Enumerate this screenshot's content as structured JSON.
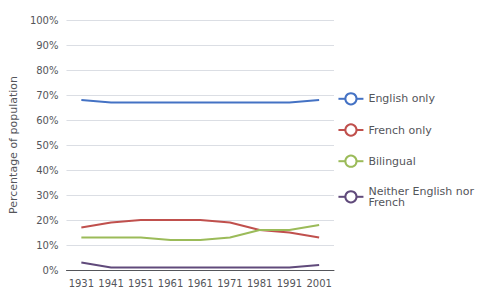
{
  "chart_data": {
    "type": "line",
    "y_label": "Percentage of population",
    "categories": [
      "1931",
      "1941",
      "1951",
      "1961",
      "1961",
      "1971",
      "1981",
      "1991",
      "2001"
    ],
    "series": [
      {
        "name": "English only",
        "color": "#4472C4",
        "values": [
          68,
          67,
          67,
          67,
          67,
          67,
          67,
          67,
          68
        ]
      },
      {
        "name": "French only",
        "color": "#C0504D",
        "values": [
          17,
          19,
          20,
          20,
          20,
          19,
          16,
          15,
          13
        ]
      },
      {
        "name": "Bilingual",
        "color": "#9BBB59",
        "values": [
          13,
          13,
          13,
          12,
          12,
          13,
          16,
          16,
          18
        ]
      },
      {
        "name": "Neither English nor\nFrench",
        "color": "#604A7B",
        "values": [
          3,
          1,
          1,
          1,
          1,
          1,
          1,
          1,
          2
        ]
      }
    ],
    "ylim": [
      0,
      100
    ],
    "yticks": [
      {
        "value": 0,
        "label": "0%"
      },
      {
        "value": 10,
        "label": "10%"
      },
      {
        "value": 20,
        "label": "20%"
      },
      {
        "value": 30,
        "label": "30%"
      },
      {
        "value": 40,
        "label": "40%"
      },
      {
        "value": 50,
        "label": "50%"
      },
      {
        "value": 60,
        "label": "60%"
      },
      {
        "value": 70,
        "label": "70%"
      },
      {
        "value": 80,
        "label": "80%"
      },
      {
        "value": 90,
        "label": "90%"
      },
      {
        "value": 100,
        "label": "100%"
      }
    ],
    "grid": true,
    "legend": "right"
  }
}
